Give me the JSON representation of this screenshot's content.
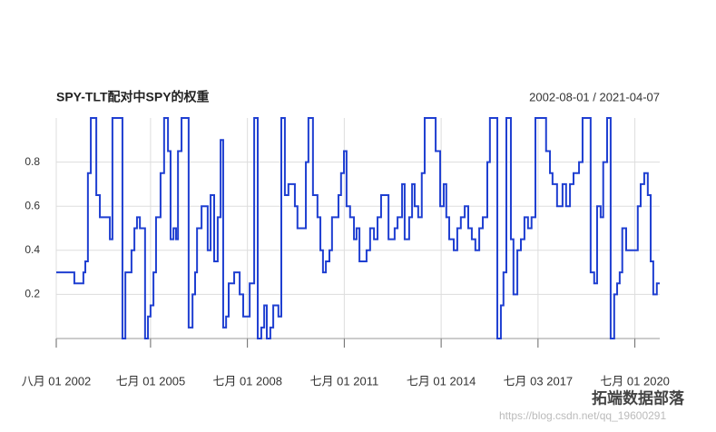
{
  "chart_data": {
    "type": "step",
    "title": "SPY-TLT配对中SPY的权重",
    "subtitle": "2002-08-01 / 2021-04-07",
    "watermark": "拓端数据部落",
    "source_url": "https://blog.csdn.net/qq_19600291",
    "color": "#1f3fd1",
    "grid": true,
    "xlim": [
      2002.58,
      2021.27
    ],
    "ylim": [
      0,
      1
    ],
    "yticks": [
      0.2,
      0.4,
      0.6,
      0.8
    ],
    "xticks": [
      {
        "value": 2002.58,
        "label": "八月 01 2002"
      },
      {
        "value": 2005.5,
        "label": "七月 01 2005"
      },
      {
        "value": 2008.5,
        "label": "七月 01 2008"
      },
      {
        "value": 2011.5,
        "label": "七月 01 2011"
      },
      {
        "value": 2014.5,
        "label": "七月 01 2014"
      },
      {
        "value": 2017.5,
        "label": "七月 03 2017"
      },
      {
        "value": 2020.5,
        "label": "七月 01 2020"
      }
    ],
    "x": [
      2002.58,
      2003.14,
      2003.42,
      2003.48,
      2003.56,
      2003.65,
      2003.82,
      2003.93,
      2004.24,
      2004.32,
      2004.63,
      2004.72,
      2004.91,
      2005.0,
      2005.08,
      2005.17,
      2005.33,
      2005.42,
      2005.5,
      2005.59,
      2005.67,
      2005.81,
      2005.92,
      2006.04,
      2006.12,
      2006.21,
      2006.29,
      2006.35,
      2006.46,
      2006.68,
      2006.8,
      2006.88,
      2006.94,
      2007.08,
      2007.27,
      2007.36,
      2007.47,
      2007.58,
      2007.67,
      2007.75,
      2007.84,
      2007.92,
      2008.09,
      2008.26,
      2008.37,
      2008.57,
      2008.71,
      2008.82,
      2008.93,
      2009.02,
      2009.1,
      2009.21,
      2009.3,
      2009.46,
      2009.55,
      2009.66,
      2009.77,
      2009.97,
      2010.05,
      2010.31,
      2010.39,
      2010.53,
      2010.67,
      2010.76,
      2010.84,
      2010.93,
      2011.04,
      2011.12,
      2011.32,
      2011.4,
      2011.49,
      2011.57,
      2011.68,
      2011.8,
      2011.88,
      2011.97,
      2012.19,
      2012.3,
      2012.42,
      2012.53,
      2012.64,
      2012.87,
      2013.06,
      2013.15,
      2013.29,
      2013.37,
      2013.51,
      2013.6,
      2013.68,
      2013.79,
      2013.9,
      2013.99,
      2014.33,
      2014.47,
      2014.58,
      2014.66,
      2014.75,
      2014.89,
      2015.0,
      2015.11,
      2015.23,
      2015.34,
      2015.45,
      2015.56,
      2015.68,
      2015.79,
      2015.93,
      2016.01,
      2016.24,
      2016.35,
      2016.43,
      2016.52,
      2016.66,
      2016.74,
      2016.86,
      2016.97,
      2017.08,
      2017.19,
      2017.3,
      2017.42,
      2017.75,
      2017.87,
      2017.95,
      2018.09,
      2018.26,
      2018.37,
      2018.49,
      2018.6,
      2018.77,
      2018.88,
      2019.13,
      2019.24,
      2019.33,
      2019.44,
      2019.52,
      2019.64,
      2019.75,
      2019.86,
      2019.95,
      2020.03,
      2020.11,
      2020.23,
      2020.59,
      2020.68,
      2020.79,
      2020.9,
      2020.99,
      2021.07,
      2021.18,
      2021.27
    ],
    "values": [
      0.3,
      0.25,
      0.3,
      0.35,
      0.75,
      1,
      0.65,
      0.55,
      0.45,
      1,
      0,
      0.3,
      0.4,
      0.5,
      0.55,
      0.5,
      0,
      0.1,
      0.15,
      0.3,
      0.55,
      0.75,
      1,
      0.85,
      0.45,
      0.5,
      0.45,
      0.85,
      1,
      0.05,
      0.2,
      0.3,
      0.5,
      0.6,
      0.4,
      0.65,
      0.35,
      0.55,
      0.9,
      0.05,
      0.1,
      0.25,
      0.3,
      0.2,
      0.1,
      0.25,
      1,
      0,
      0.05,
      0.15,
      0,
      0.05,
      0.15,
      0.1,
      1,
      0.65,
      0.7,
      0.6,
      0.5,
      0.8,
      1,
      0.65,
      0.55,
      0.4,
      0.3,
      0.35,
      0.4,
      0.55,
      0.65,
      0.75,
      0.85,
      0.6,
      0.55,
      0.45,
      0.5,
      0.35,
      0.4,
      0.5,
      0.45,
      0.55,
      0.65,
      0.45,
      0.5,
      0.55,
      0.7,
      0.45,
      0.55,
      0.7,
      0.6,
      0.55,
      0.75,
      1,
      0.85,
      0.6,
      0.7,
      0.55,
      0.45,
      0.4,
      0.5,
      0.55,
      0.6,
      0.5,
      0.45,
      0.4,
      0.5,
      0.55,
      0.8,
      1,
      0,
      0.15,
      0.3,
      1,
      0.45,
      0.2,
      0.4,
      0.45,
      0.55,
      0.5,
      0.55,
      1,
      0.85,
      0.75,
      0.7,
      0.6,
      0.7,
      0.6,
      0.7,
      0.75,
      0.8,
      1,
      0.3,
      0.25,
      0.6,
      0.55,
      0.8,
      1,
      0,
      0.2,
      0.25,
      0.3,
      0.5,
      0.4,
      0.6,
      0.7,
      0.75,
      0.65,
      0.35,
      0.2,
      0.25,
      0.25
    ]
  }
}
